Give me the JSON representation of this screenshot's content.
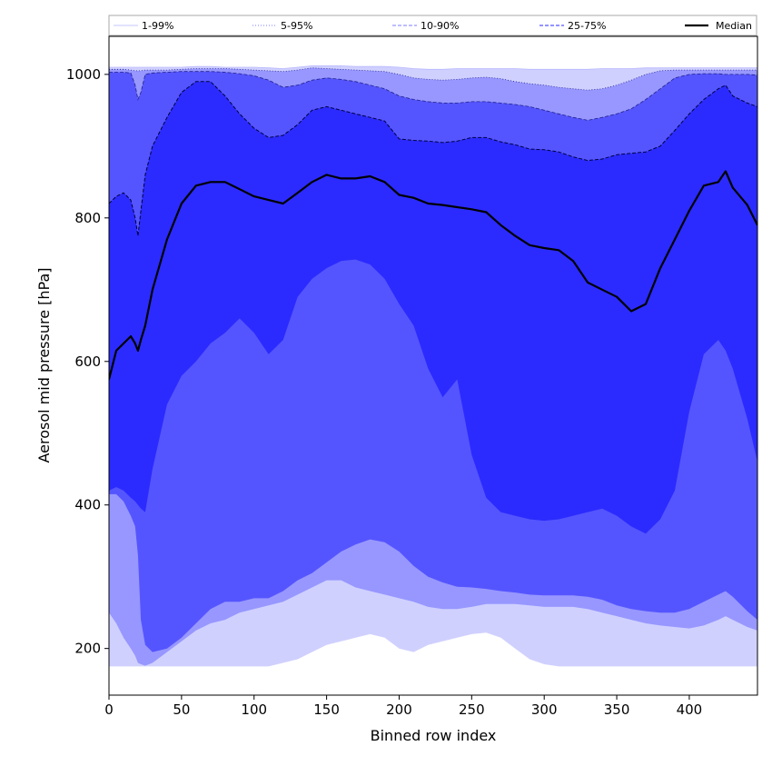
{
  "chart_data": {
    "type": "area",
    "xlabel": "Binned row index",
    "ylabel": "Aerosol mid pressure [hPa]",
    "xlim": [
      0,
      447
    ],
    "ylim": [
      135,
      1053
    ],
    "xticks": [
      0,
      50,
      100,
      150,
      200,
      250,
      300,
      350,
      400
    ],
    "yticks": [
      200,
      400,
      600,
      800,
      1000
    ],
    "grid": false,
    "legend_position": "top (above plot area, spanning full width)",
    "x": [
      0,
      5,
      10,
      15,
      18,
      20,
      22,
      25,
      30,
      40,
      50,
      60,
      70,
      80,
      90,
      100,
      110,
      120,
      130,
      140,
      150,
      160,
      170,
      180,
      190,
      200,
      210,
      220,
      230,
      240,
      250,
      260,
      270,
      280,
      290,
      300,
      310,
      320,
      330,
      340,
      350,
      360,
      370,
      380,
      390,
      400,
      410,
      420,
      425,
      430,
      440,
      447
    ],
    "bands": [
      {
        "name": "1-99%",
        "color": "#d0d0ff",
        "lower": [
          175,
          175,
          175,
          175,
          175,
          175,
          175,
          175,
          175,
          175,
          175,
          175,
          175,
          175,
          175,
          175,
          175,
          180,
          185,
          195,
          205,
          210,
          215,
          220,
          215,
          200,
          195,
          205,
          210,
          215,
          220,
          222,
          215,
          200,
          185,
          178,
          175,
          175,
          175,
          175,
          175,
          175,
          175,
          175,
          175,
          175,
          175,
          175,
          175,
          175,
          175,
          175
        ],
        "upper": [
          1010,
          1010,
          1010,
          1010,
          1010,
          1010,
          1010,
          1010,
          1010,
          1010,
          1010,
          1011,
          1011,
          1010,
          1010,
          1010,
          1009,
          1008,
          1010,
          1012,
          1012,
          1012,
          1011,
          1011,
          1011,
          1010,
          1008,
          1007,
          1007,
          1008,
          1008,
          1008,
          1008,
          1008,
          1007,
          1007,
          1007,
          1007,
          1007,
          1008,
          1008,
          1008,
          1009,
          1009,
          1009,
          1009,
          1009,
          1009,
          1009,
          1009,
          1009,
          1009
        ]
      },
      {
        "name": "5-95%",
        "color": "#9797ff",
        "lower": [
          250,
          235,
          215,
          200,
          190,
          180,
          178,
          176,
          180,
          195,
          210,
          225,
          235,
          240,
          250,
          255,
          260,
          265,
          275,
          285,
          295,
          295,
          285,
          280,
          275,
          270,
          265,
          258,
          255,
          255,
          258,
          262,
          262,
          262,
          260,
          258,
          258,
          258,
          255,
          250,
          245,
          240,
          235,
          232,
          230,
          228,
          232,
          240,
          245,
          240,
          230,
          225
        ],
        "upper": [
          1007,
          1007,
          1007,
          1006,
          1005,
          1005,
          1005,
          1006,
          1006,
          1006,
          1007,
          1008,
          1008,
          1008,
          1007,
          1006,
          1005,
          1004,
          1006,
          1009,
          1008,
          1007,
          1006,
          1005,
          1004,
          1000,
          995,
          993,
          992,
          993,
          995,
          996,
          994,
          990,
          987,
          985,
          982,
          980,
          978,
          980,
          985,
          992,
          1000,
          1005,
          1006,
          1006,
          1006,
          1006,
          1006,
          1006,
          1006,
          1006
        ]
      },
      {
        "name": "10-90%",
        "color": "#5555ff",
        "lower": [
          415,
          415,
          405,
          385,
          370,
          330,
          240,
          205,
          195,
          200,
          215,
          235,
          255,
          265,
          265,
          270,
          270,
          280,
          295,
          305,
          320,
          335,
          345,
          352,
          348,
          335,
          315,
          300,
          292,
          286,
          285,
          283,
          280,
          278,
          275,
          274,
          274,
          274,
          272,
          268,
          260,
          255,
          252,
          250,
          250,
          255,
          265,
          275,
          280,
          272,
          252,
          240
        ],
        "upper": [
          1003,
          1003,
          1003,
          1002,
          985,
          965,
          975,
          1000,
          1002,
          1003,
          1004,
          1004,
          1004,
          1003,
          1001,
          998,
          992,
          982,
          985,
          992,
          995,
          993,
          990,
          985,
          980,
          970,
          965,
          962,
          960,
          960,
          962,
          962,
          960,
          958,
          955,
          950,
          945,
          940,
          936,
          940,
          945,
          952,
          965,
          980,
          995,
          1000,
          1001,
          1001,
          1000,
          1000,
          1000,
          999
        ]
      },
      {
        "name": "25-75%",
        "color": "#2b2bff",
        "lower": [
          420,
          425,
          420,
          410,
          405,
          400,
          395,
          390,
          450,
          540,
          580,
          600,
          625,
          640,
          660,
          640,
          610,
          630,
          690,
          715,
          730,
          740,
          742,
          735,
          715,
          680,
          650,
          590,
          550,
          575,
          470,
          410,
          390,
          385,
          380,
          378,
          380,
          385,
          390,
          395,
          385,
          370,
          360,
          380,
          420,
          530,
          610,
          630,
          615,
          590,
          520,
          460
        ],
        "upper": [
          820,
          830,
          835,
          825,
          800,
          775,
          810,
          860,
          900,
          940,
          975,
          990,
          990,
          970,
          945,
          925,
          912,
          915,
          930,
          950,
          955,
          950,
          945,
          940,
          935,
          910,
          908,
          907,
          905,
          907,
          912,
          912,
          906,
          902,
          896,
          895,
          892,
          885,
          880,
          882,
          888,
          890,
          892,
          900,
          922,
          945,
          965,
          980,
          985,
          970,
          960,
          955
        ]
      }
    ],
    "median": {
      "name": "Median",
      "color": "#000000",
      "values": [
        575,
        615,
        625,
        635,
        625,
        615,
        630,
        650,
        700,
        770,
        820,
        845,
        850,
        850,
        840,
        830,
        825,
        820,
        835,
        850,
        860,
        855,
        855,
        858,
        850,
        832,
        828,
        820,
        818,
        815,
        812,
        808,
        790,
        775,
        762,
        758,
        755,
        740,
        710,
        700,
        690,
        670,
        680,
        730,
        770,
        810,
        845,
        850,
        865,
        842,
        818,
        790
      ]
    },
    "legend": [
      {
        "name": "1-99%",
        "style": "solid",
        "color": "#d0d0ff"
      },
      {
        "name": "5-95%",
        "style": "dotted",
        "color": "#9797ff"
      },
      {
        "name": "10-90%",
        "style": "dashed",
        "color": "#9797ff"
      },
      {
        "name": "25-75%",
        "style": "dashed",
        "color": "#5555ff"
      },
      {
        "name": "Median",
        "style": "solid",
        "color": "#000000"
      }
    ]
  }
}
